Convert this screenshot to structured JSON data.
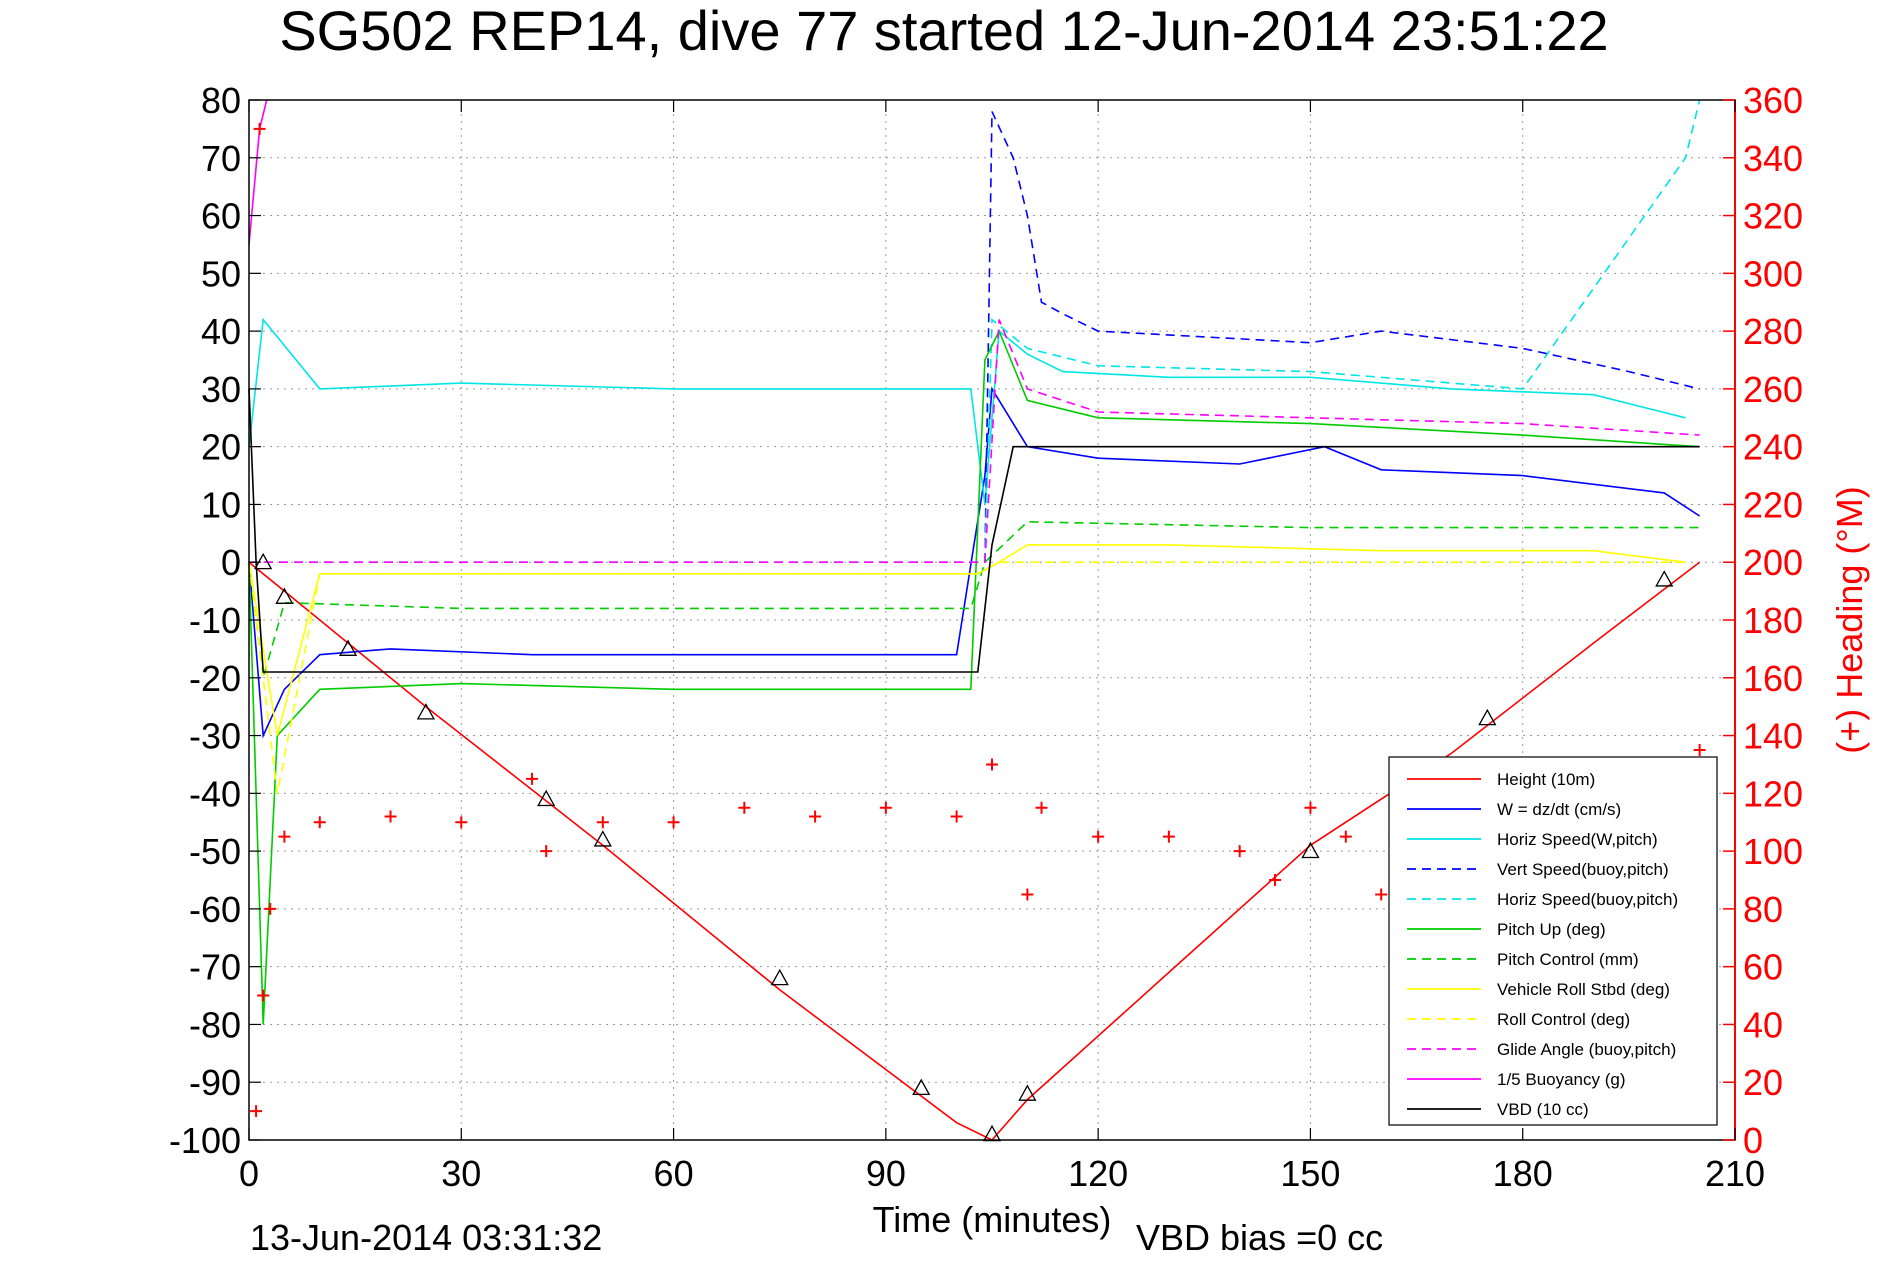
{
  "chart_data": {
    "type": "line",
    "title": "SG502 REP14, dive 77 started 12-Jun-2014 23:51:22",
    "xlabel": "Time (minutes)",
    "ylabel_right": "(+) Heading (°M)",
    "footer_left": "13-Jun-2014 03:31:32",
    "footer_right": "VBD bias =0 cc",
    "xlim": [
      0,
      210
    ],
    "ylim_left": [
      -100,
      80
    ],
    "ylim_right": [
      0,
      360
    ],
    "x_ticks": [
      "0",
      "30",
      "60",
      "90",
      "120",
      "150",
      "180",
      "210"
    ],
    "y_ticks_left": [
      "80",
      "70",
      "60",
      "50",
      "40",
      "30",
      "20",
      "10",
      "0",
      "-10",
      "-20",
      "-30",
      "-40",
      "-50",
      "-60",
      "-70",
      "-80",
      "-90",
      "-100"
    ],
    "y_ticks_right": [
      "360",
      "340",
      "320",
      "300",
      "280",
      "260",
      "240",
      "220",
      "200",
      "180",
      "160",
      "140",
      "120",
      "100",
      "80",
      "60",
      "40",
      "20",
      "0"
    ],
    "grid": true,
    "legend_position": "bottom-right",
    "series": [
      {
        "name": "Height (10m)",
        "color": "#ff0000",
        "style": "solid",
        "x": [
          0,
          25,
          50,
          75,
          100,
          105,
          110,
          130,
          150,
          170,
          190,
          205
        ],
        "y": [
          0,
          -25,
          -49,
          -74,
          -97,
          -100,
          -93,
          -71,
          -49,
          -33,
          -14,
          0
        ]
      },
      {
        "name": "W = dz/dt (cm/s)",
        "color": "#0000ff",
        "style": "solid",
        "x": [
          0,
          2,
          5,
          10,
          20,
          40,
          60,
          80,
          100,
          104,
          105,
          106,
          110,
          120,
          140,
          152,
          160,
          180,
          200,
          205
        ],
        "y": [
          0,
          -30,
          -22,
          -16,
          -15,
          -16,
          -16,
          -16,
          -16,
          15,
          30,
          28,
          20,
          18,
          17,
          20,
          16,
          15,
          12,
          8
        ]
      },
      {
        "name": "Horiz Speed(W,pitch)",
        "color": "#00e5e5",
        "style": "solid",
        "x": [
          0,
          2,
          10,
          30,
          60,
          90,
          102,
          104,
          106,
          110,
          115,
          130,
          150,
          170,
          190,
          203
        ],
        "y": [
          20,
          42,
          30,
          31,
          30,
          30,
          30,
          10,
          40,
          36,
          33,
          32,
          32,
          30,
          29,
          25
        ]
      },
      {
        "name": "Vert Speed(buoy,pitch)",
        "color": "#0000ff",
        "style": "dashed",
        "x": [
          104,
          105,
          108,
          110,
          112,
          115,
          120,
          150,
          160,
          180,
          195,
          205
        ],
        "y": [
          0,
          78,
          70,
          60,
          45,
          43,
          40,
          38,
          40,
          37,
          33,
          30
        ]
      },
      {
        "name": "Horiz Speed(buoy,pitch)",
        "color": "#00e5e5",
        "style": "dashed",
        "x": [
          0,
          104,
          105,
          110,
          120,
          150,
          180,
          203,
          205
        ],
        "y": [
          0,
          0,
          42,
          37,
          34,
          33,
          30,
          70,
          80
        ]
      },
      {
        "name": "Pitch Up (deg)",
        "color": "#00cc00",
        "style": "solid",
        "x": [
          0,
          2,
          4,
          10,
          30,
          60,
          90,
          102,
          104,
          106,
          110,
          120,
          150,
          180,
          205
        ],
        "y": [
          0,
          -80,
          -30,
          -22,
          -21,
          -22,
          -22,
          -22,
          35,
          40,
          28,
          25,
          24,
          22,
          20
        ]
      },
      {
        "name": "Pitch Control (mm)",
        "color": "#00cc00",
        "style": "dashed",
        "x": [
          0,
          2,
          5,
          30,
          60,
          90,
          102,
          104,
          110,
          150,
          180,
          205
        ],
        "y": [
          0,
          -20,
          -7,
          -8,
          -8,
          -8,
          -8,
          0,
          7,
          6,
          6,
          6
        ]
      },
      {
        "name": "Vehicle Roll Stbd (deg)",
        "color": "#ffff00",
        "style": "solid",
        "x": [
          0,
          4,
          10,
          30,
          60,
          90,
          103,
          106,
          110,
          130,
          160,
          190,
          203
        ],
        "y": [
          0,
          -30,
          -2,
          -2,
          -2,
          -2,
          -2,
          0,
          3,
          3,
          2,
          2,
          0
        ]
      },
      {
        "name": "Roll Control (deg)",
        "color": "#ffff00",
        "style": "dashed",
        "x": [
          0,
          4,
          10,
          30,
          60,
          90,
          103,
          106,
          150,
          203
        ],
        "y": [
          0,
          -40,
          -2,
          -2,
          -2,
          -2,
          -2,
          0,
          0,
          0
        ]
      },
      {
        "name": "Glide Angle (buoy,pitch)",
        "color": "#ff00ff",
        "style": "dashed",
        "x": [
          0,
          104,
          106,
          110,
          120,
          150,
          180,
          205
        ],
        "y": [
          0,
          0,
          42,
          30,
          26,
          25,
          24,
          22
        ]
      },
      {
        "name": "1/5 Buoyancy (g)",
        "color": "#ff00ff",
        "style": "solid",
        "x": [
          0,
          1.5,
          2.5
        ],
        "y": [
          55,
          75,
          80
        ]
      },
      {
        "name": "VBD (10 cc)",
        "color": "#000000",
        "style": "solid",
        "x": [
          0,
          1,
          2,
          30,
          60,
          90,
          103,
          105,
          108,
          130,
          160,
          190,
          205
        ],
        "y": [
          30,
          0,
          -19,
          -19,
          -19,
          -19,
          -19,
          3,
          20,
          20,
          20,
          20,
          20
        ]
      }
    ],
    "heading_series": {
      "name": "Heading",
      "color": "#ff0000",
      "marker": "+",
      "x": [
        1,
        1.5,
        2,
        3,
        5,
        10,
        20,
        30,
        40,
        42,
        50,
        60,
        70,
        80,
        90,
        100,
        105,
        110,
        112,
        120,
        130,
        140,
        145,
        150,
        155,
        160,
        205
      ],
      "y": [
        10,
        350,
        50,
        80,
        105,
        110,
        112,
        110,
        125,
        100,
        110,
        110,
        115,
        112,
        115,
        112,
        130,
        85,
        115,
        105,
        105,
        100,
        90,
        115,
        105,
        85,
        135
      ]
    },
    "markers": [
      {
        "name": "triangle",
        "color": "#000000",
        "x": [
          2,
          5,
          14,
          25,
          42,
          50,
          75,
          95,
          105,
          110,
          150,
          175,
          200
        ],
        "y": [
          0,
          -6,
          -15,
          -26,
          -41,
          -48,
          -72,
          -91,
          -99,
          -92,
          -50,
          -27,
          -3
        ]
      }
    ]
  }
}
